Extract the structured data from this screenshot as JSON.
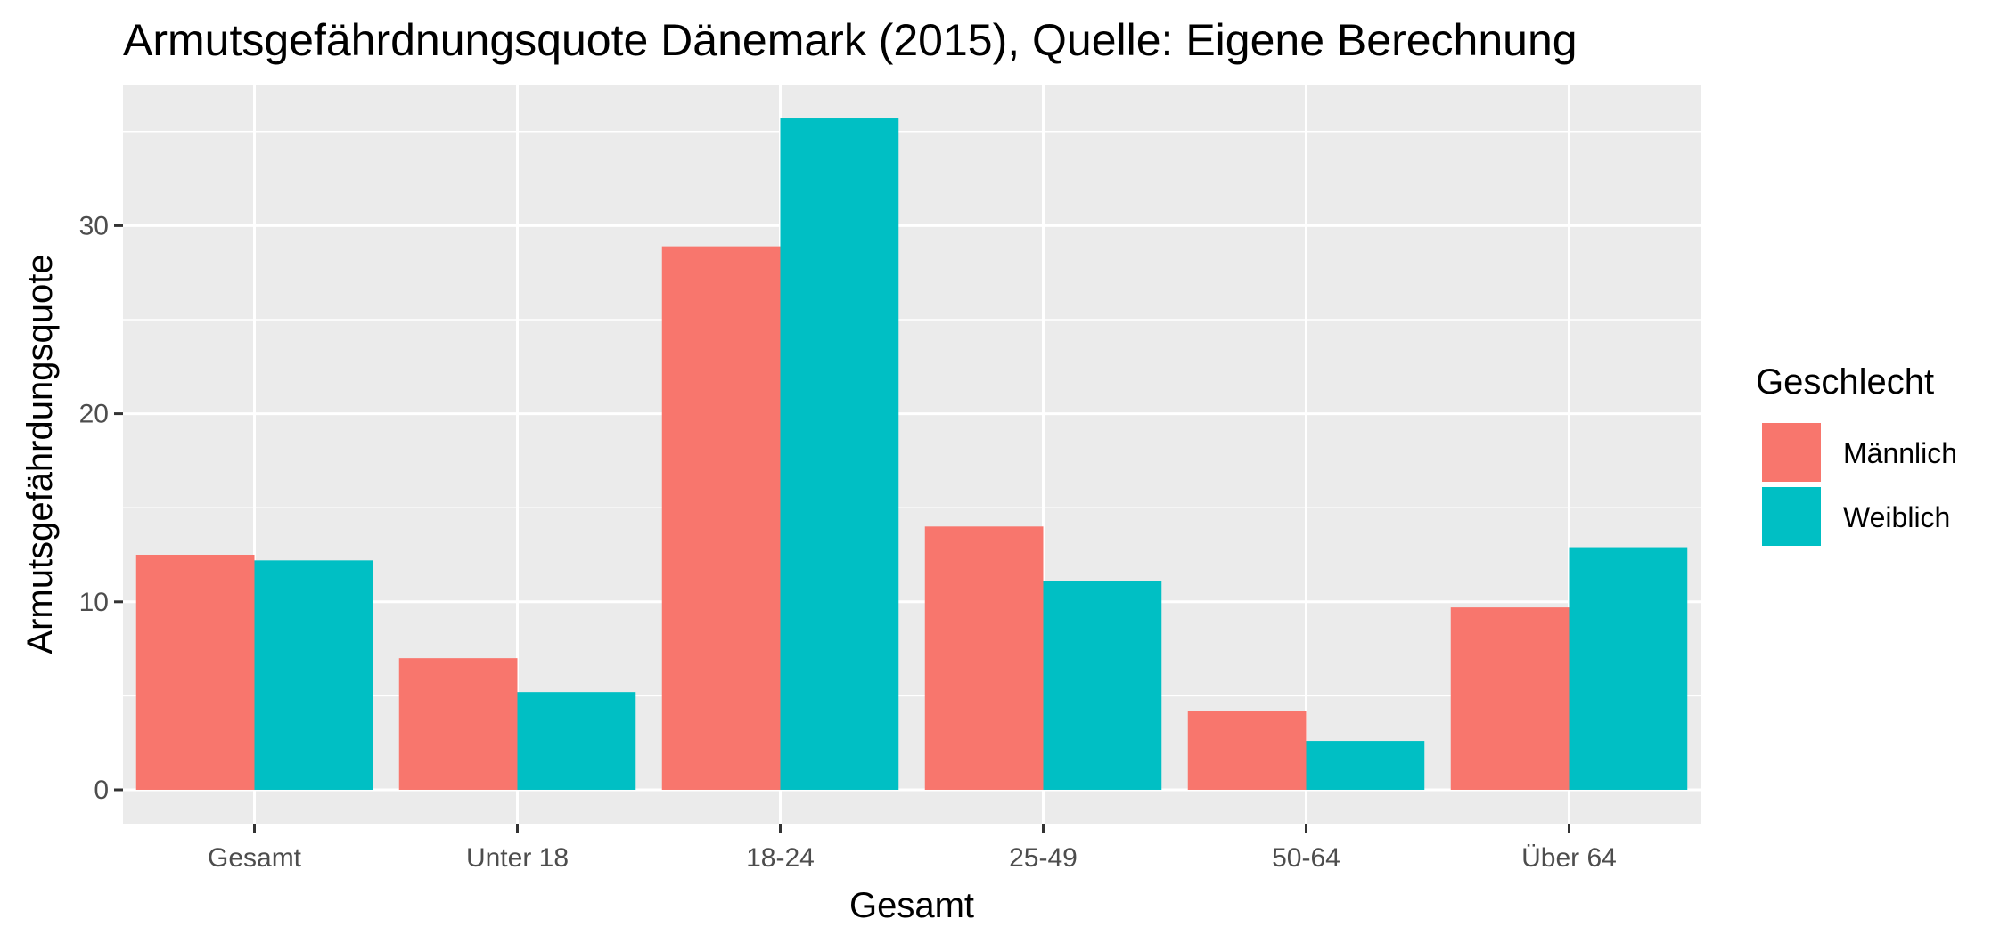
{
  "chart_data": {
    "type": "bar",
    "title": "Armutsgefährdnungsquote Dänemark (2015), Quelle: Eigene Berechnung",
    "xlabel": "Gesamt",
    "ylabel": "Armutsgefährdungsquote",
    "categories": [
      "Gesamt",
      "Unter 18",
      "18-24",
      "25-49",
      "50-64",
      "Über 64"
    ],
    "series": [
      {
        "name": "Männlich",
        "color": "#F8766D",
        "values": [
          12.5,
          7.0,
          28.9,
          14.0,
          4.2,
          9.7
        ]
      },
      {
        "name": "Weiblich",
        "color": "#00BFC4",
        "values": [
          12.2,
          5.2,
          35.7,
          11.1,
          2.6,
          12.9
        ]
      }
    ],
    "ylim": [
      -1.8,
      37.5
    ],
    "yticks": [
      0,
      10,
      20,
      30
    ],
    "grid": true,
    "legend": {
      "title": "Geschlecht",
      "position": "right"
    },
    "panel_background": "#EBEBEB",
    "grid_color": "#FFFFFF"
  }
}
